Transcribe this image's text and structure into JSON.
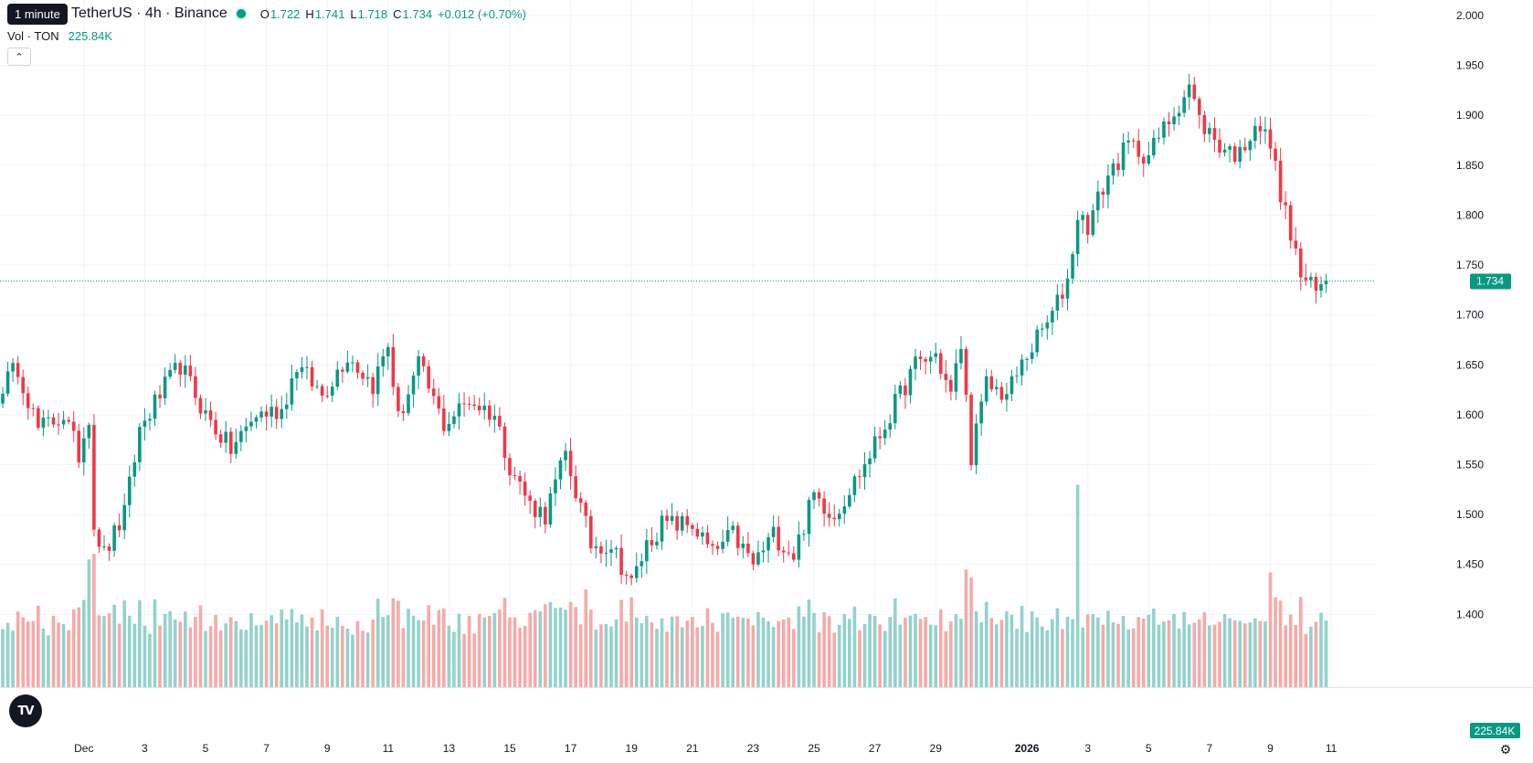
{
  "tooltip": "1 minute",
  "symbol": "TetherUS · 4h · Binance",
  "ohlc": {
    "o_label": "O",
    "o": "1.722",
    "h_label": "H",
    "h": "1.741",
    "l_label": "L",
    "l": "1.718",
    "c_label": "C",
    "c": "1.734",
    "change": "+0.012 (+0.70%)"
  },
  "volume": {
    "label": "Vol · TON",
    "value": "225.84K"
  },
  "logo": "TV",
  "colors": {
    "up": "#089981",
    "down": "#f23645",
    "up_vol": "#92d2cc",
    "down_vol": "#f7a9a7",
    "grid": "#f0f3fa"
  },
  "chart_data": {
    "type": "candlestick",
    "ylim": [
      1.36,
      2.0
    ],
    "price_ticks": [
      2.0,
      1.95,
      1.9,
      1.85,
      1.8,
      1.75,
      1.7,
      1.65,
      1.6,
      1.55,
      1.5,
      1.45,
      1.4
    ],
    "last_price": 1.734,
    "last_price_label": "1.734",
    "last_volume_label": "225.84K",
    "x_ticks": [
      "Dec",
      "3",
      "5",
      "7",
      "9",
      "11",
      "13",
      "15",
      "17",
      "19",
      "21",
      "23",
      "25",
      "27",
      "29",
      "2026",
      "3",
      "5",
      "7",
      "9",
      "11"
    ],
    "x_tick_bold": [
      false,
      false,
      false,
      false,
      false,
      false,
      false,
      false,
      false,
      false,
      false,
      false,
      false,
      false,
      false,
      true,
      false,
      false,
      false,
      false,
      false
    ],
    "x_tick_candle_index": [
      16,
      28,
      40,
      52,
      64,
      76,
      88,
      100,
      112,
      124,
      136,
      148,
      160,
      172,
      184,
      202,
      214,
      226,
      238,
      250,
      262
    ],
    "candle_count": 262,
    "anchors": [
      [
        0,
        1.63
      ],
      [
        3,
        1.648
      ],
      [
        7,
        1.585
      ],
      [
        12,
        1.6
      ],
      [
        15,
        1.56
      ],
      [
        17,
        1.6
      ],
      [
        18,
        1.49
      ],
      [
        20,
        1.46
      ],
      [
        24,
        1.5
      ],
      [
        27,
        1.585
      ],
      [
        31,
        1.62
      ],
      [
        35,
        1.65
      ],
      [
        40,
        1.6
      ],
      [
        45,
        1.565
      ],
      [
        50,
        1.6
      ],
      [
        55,
        1.605
      ],
      [
        58,
        1.65
      ],
      [
        63,
        1.62
      ],
      [
        68,
        1.66
      ],
      [
        73,
        1.63
      ],
      [
        76,
        1.67
      ],
      [
        78,
        1.595
      ],
      [
        82,
        1.65
      ],
      [
        87,
        1.59
      ],
      [
        92,
        1.615
      ],
      [
        97,
        1.6
      ],
      [
        100,
        1.55
      ],
      [
        104,
        1.51
      ],
      [
        107,
        1.5
      ],
      [
        111,
        1.56
      ],
      [
        116,
        1.47
      ],
      [
        120,
        1.47
      ],
      [
        124,
        1.43
      ],
      [
        127,
        1.47
      ],
      [
        130,
        1.49
      ],
      [
        136,
        1.49
      ],
      [
        140,
        1.46
      ],
      [
        144,
        1.48
      ],
      [
        148,
        1.45
      ],
      [
        152,
        1.48
      ],
      [
        156,
        1.46
      ],
      [
        160,
        1.52
      ],
      [
        164,
        1.5
      ],
      [
        170,
        1.55
      ],
      [
        176,
        1.61
      ],
      [
        180,
        1.65
      ],
      [
        184,
        1.66
      ],
      [
        187,
        1.62
      ],
      [
        189,
        1.67
      ],
      [
        191,
        1.56
      ],
      [
        194,
        1.63
      ],
      [
        198,
        1.62
      ],
      [
        202,
        1.66
      ],
      [
        207,
        1.7
      ],
      [
        210,
        1.735
      ],
      [
        212,
        1.8
      ],
      [
        214,
        1.79
      ],
      [
        218,
        1.84
      ],
      [
        222,
        1.87
      ],
      [
        226,
        1.86
      ],
      [
        230,
        1.895
      ],
      [
        234,
        1.93
      ],
      [
        236,
        1.895
      ],
      [
        240,
        1.87
      ],
      [
        244,
        1.86
      ],
      [
        247,
        1.895
      ],
      [
        250,
        1.87
      ],
      [
        253,
        1.8
      ],
      [
        256,
        1.74
      ],
      [
        259,
        1.722
      ],
      [
        261,
        1.734
      ]
    ],
    "volume_spikes": [
      [
        17,
        1.455
      ],
      [
        30,
        1.415
      ],
      [
        115,
        1.425
      ],
      [
        124,
        1.417
      ],
      [
        190,
        1.445
      ],
      [
        212,
        1.53
      ],
      [
        250,
        1.442
      ],
      [
        251,
        1.417
      ]
    ]
  }
}
